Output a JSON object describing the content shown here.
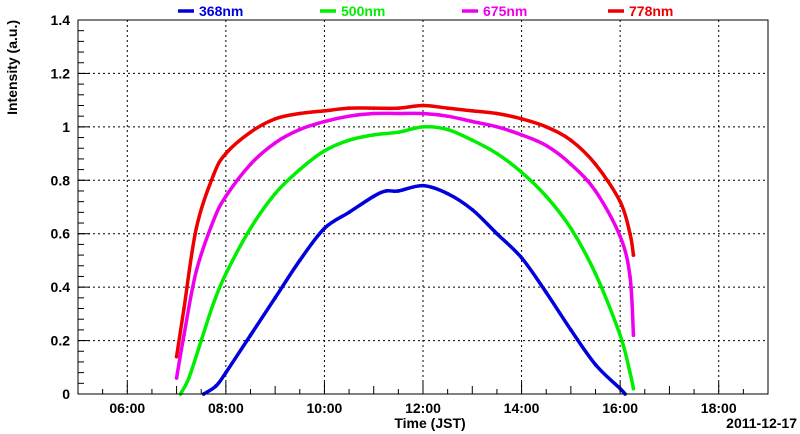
{
  "chart_data": {
    "type": "line",
    "title": "",
    "xlabel": "Time (JST)",
    "ylabel": "Intensity (a.u.)",
    "date_label": "2011-12-17",
    "xlim": [
      5.0,
      19.0
    ],
    "ylim": [
      0,
      1.4
    ],
    "x_ticks": [
      6,
      8,
      10,
      12,
      14,
      16,
      18
    ],
    "x_tick_labels": [
      "06:00",
      "08:00",
      "10:00",
      "12:00",
      "14:00",
      "16:00",
      "18:00"
    ],
    "y_ticks": [
      0,
      0.2,
      0.4,
      0.6,
      0.8,
      1,
      1.2,
      1.4
    ],
    "y_tick_labels": [
      "0",
      "0.2",
      "0.4",
      "0.6",
      "0.8",
      "1",
      "1.2",
      "1.4"
    ],
    "grid": true,
    "legend_position": "top",
    "series": [
      {
        "name": "368nm",
        "color": "#0000dd",
        "x": [
          7.55,
          7.8,
          8.0,
          8.5,
          9.0,
          9.5,
          10.0,
          10.5,
          11.0,
          11.25,
          11.5,
          12.0,
          12.5,
          13.0,
          13.5,
          14.0,
          14.5,
          15.0,
          15.5,
          16.0,
          16.1
        ],
        "y": [
          0.0,
          0.03,
          0.08,
          0.22,
          0.36,
          0.5,
          0.62,
          0.68,
          0.74,
          0.76,
          0.76,
          0.78,
          0.75,
          0.69,
          0.6,
          0.51,
          0.38,
          0.24,
          0.11,
          0.02,
          0.0
        ]
      },
      {
        "name": "500nm",
        "color": "#00ee00",
        "x": [
          7.08,
          7.25,
          7.5,
          7.75,
          8.0,
          8.5,
          9.0,
          9.5,
          10.0,
          10.5,
          11.0,
          11.5,
          12.0,
          12.5,
          13.0,
          13.5,
          14.0,
          14.5,
          15.0,
          15.5,
          16.0,
          16.2,
          16.27
        ],
        "y": [
          0.0,
          0.06,
          0.2,
          0.34,
          0.45,
          0.62,
          0.75,
          0.84,
          0.91,
          0.95,
          0.97,
          0.98,
          1.0,
          0.99,
          0.95,
          0.9,
          0.83,
          0.74,
          0.62,
          0.45,
          0.22,
          0.08,
          0.02
        ]
      },
      {
        "name": "675nm",
        "color": "#ee00ee",
        "x": [
          7.0,
          7.15,
          7.4,
          7.75,
          8.0,
          8.5,
          9.0,
          9.5,
          10.0,
          10.5,
          11.0,
          11.5,
          12.0,
          12.5,
          13.0,
          13.5,
          14.0,
          14.5,
          15.0,
          15.5,
          16.0,
          16.2,
          16.27
        ],
        "y": [
          0.06,
          0.22,
          0.46,
          0.65,
          0.74,
          0.86,
          0.94,
          0.99,
          1.02,
          1.04,
          1.05,
          1.05,
          1.05,
          1.04,
          1.02,
          1.0,
          0.97,
          0.93,
          0.86,
          0.76,
          0.59,
          0.44,
          0.22
        ]
      },
      {
        "name": "778nm",
        "color": "#ee0000",
        "x": [
          7.0,
          7.15,
          7.4,
          7.75,
          8.0,
          8.5,
          9.0,
          9.5,
          10.0,
          10.5,
          11.0,
          11.5,
          12.0,
          12.5,
          13.0,
          13.5,
          14.0,
          14.5,
          15.0,
          15.5,
          16.0,
          16.2,
          16.27
        ],
        "y": [
          0.14,
          0.32,
          0.62,
          0.82,
          0.9,
          0.98,
          1.03,
          1.05,
          1.06,
          1.07,
          1.07,
          1.07,
          1.08,
          1.07,
          1.06,
          1.05,
          1.03,
          1.0,
          0.95,
          0.86,
          0.72,
          0.6,
          0.52
        ]
      }
    ]
  }
}
